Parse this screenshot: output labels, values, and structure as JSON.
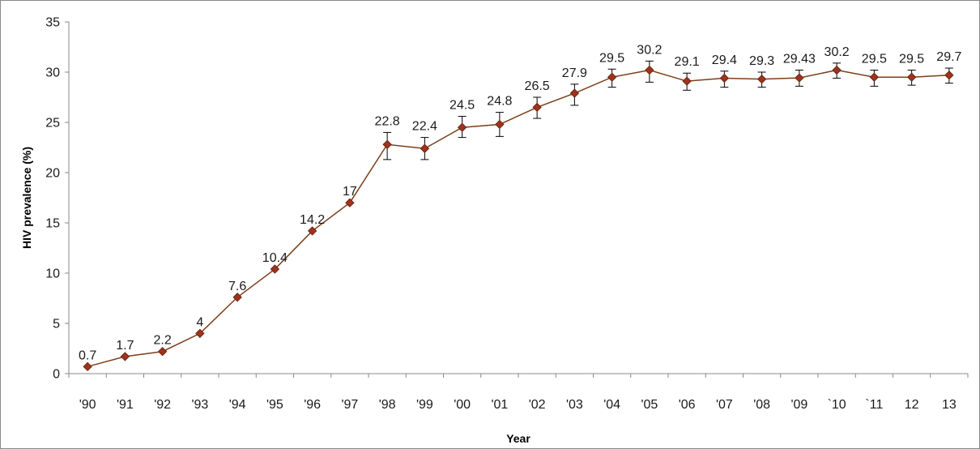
{
  "chart_data": {
    "type": "line",
    "title": "",
    "xlabel": "Year",
    "ylabel": "HIV prevalence (%)",
    "ylim": [
      0,
      35
    ],
    "yticks": [
      "0",
      "5",
      "10",
      "15",
      "20",
      "25",
      "30",
      "35"
    ],
    "grid": false,
    "legend": "none",
    "categories": [
      "'90",
      "'91",
      "'92",
      "'93",
      "'94",
      "'95",
      "'96",
      "'97",
      "'98",
      "'99",
      "'00",
      "'01",
      "'02",
      "'03",
      "'04",
      "'05",
      "'06",
      "'07",
      "'08",
      "'09",
      "`10",
      "`11",
      "12",
      "13"
    ],
    "series": [
      {
        "values": [
          0.7,
          1.7,
          2.2,
          4,
          7.6,
          10.4,
          14.2,
          17,
          22.8,
          22.4,
          24.5,
          24.8,
          26.5,
          27.9,
          29.5,
          30.2,
          29.1,
          29.4,
          29.3,
          29.43,
          30.2,
          29.5,
          29.5,
          29.7
        ],
        "labels": [
          "0.7",
          "1.7",
          "2.2",
          "4",
          "7.6",
          "10.4",
          "14.2",
          "17",
          "22.8",
          "22.4",
          "24.5",
          "24.8",
          "26.5",
          "27.9",
          "29.5",
          "30.2",
          "29.1",
          "29.4",
          "29.3",
          "29.43",
          "30.2",
          "29.5",
          "29.5",
          "29.7"
        ],
        "error_low": [
          null,
          null,
          null,
          null,
          null,
          null,
          null,
          null,
          21.3,
          21.3,
          23.5,
          23.6,
          25.4,
          26.7,
          28.5,
          29.0,
          28.2,
          28.5,
          28.5,
          28.6,
          29.4,
          28.6,
          28.7,
          28.9
        ],
        "error_high": [
          null,
          null,
          null,
          null,
          null,
          null,
          null,
          null,
          24.0,
          23.5,
          25.6,
          26.0,
          27.5,
          28.8,
          30.3,
          31.1,
          29.9,
          30.1,
          30.0,
          30.2,
          30.9,
          30.2,
          30.2,
          30.4
        ]
      }
    ],
    "colors": {
      "line": "#7b3f1a",
      "marker": "#a0321e",
      "marker_edge": "#6b2a12",
      "axis": "#888888",
      "error_bar": "#000000"
    }
  }
}
